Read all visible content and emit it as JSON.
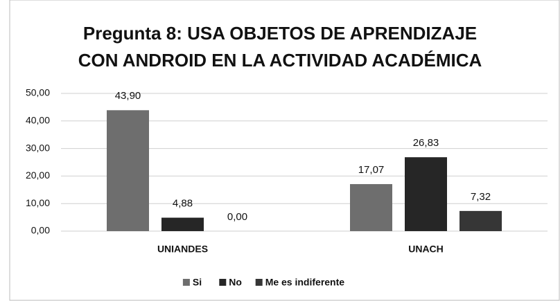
{
  "chart_data": {
    "type": "bar",
    "title": [
      "Pregunta 8: USA OBJETOS DE APRENDIZAJE",
      "CON ANDROID EN LA ACTIVIDAD ACADÉMICA"
    ],
    "categories": [
      "UNIANDES",
      "UNACH"
    ],
    "series": [
      {
        "name": "Si",
        "color": "#6e6e6e",
        "values": [
          43.9,
          17.07
        ],
        "value_labels": [
          "43,90",
          "17,07"
        ]
      },
      {
        "name": "No",
        "color": "#262626",
        "values": [
          4.88,
          26.83
        ],
        "value_labels": [
          "4,88",
          "26,83"
        ]
      },
      {
        "name": "Me es indiferente",
        "color": "#363636",
        "values": [
          0,
          7.32
        ],
        "value_labels": [
          "0,00",
          "7,32"
        ]
      }
    ],
    "ylim": [
      0,
      50
    ],
    "yticks": [
      {
        "value": 0,
        "label": "0,00"
      },
      {
        "value": 10,
        "label": "10,00"
      },
      {
        "value": 20,
        "label": "20,00"
      },
      {
        "value": 30,
        "label": "30,00"
      },
      {
        "value": 40,
        "label": "40,00"
      },
      {
        "value": 50,
        "label": "50,00"
      }
    ],
    "grid": true,
    "legend": "bottom"
  }
}
